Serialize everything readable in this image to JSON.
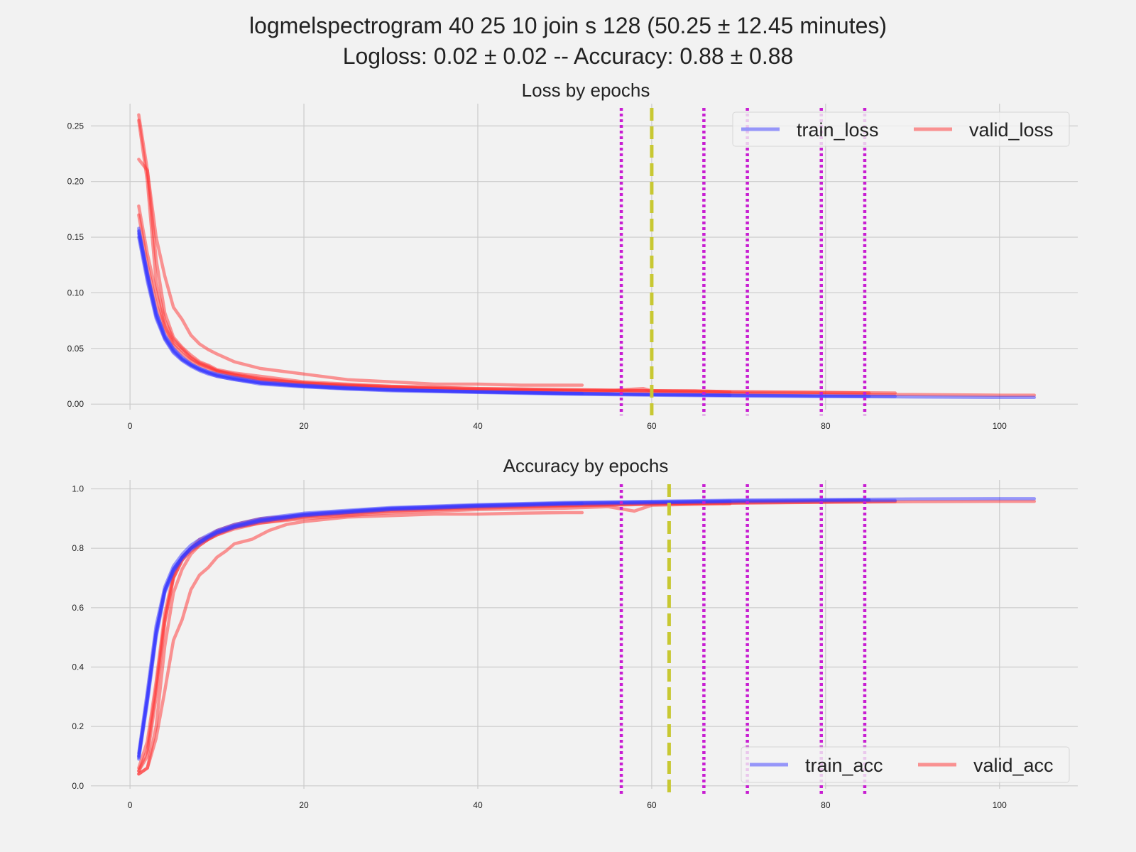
{
  "figure": {
    "title_line1": "logmelspectrogram 40 25 10 join s 128   (50.25 ± 12.45 minutes)",
    "title_line2": "Logloss: 0.02 ± 0.02  -- Accuracy:  0.88 ± 0.88"
  },
  "colors": {
    "background": "#f2f2f2",
    "grid": "#cbcbcb",
    "train": "#3a3aff",
    "valid": "#ff3030",
    "fold_marker": "#c81ed2",
    "best_marker": "#c8c832"
  },
  "chart_data": [
    {
      "type": "line",
      "title": "Loss by epochs",
      "xlabel": "",
      "ylabel": "",
      "xlim": [
        -4.5,
        109
      ],
      "ylim": [
        -0.005,
        0.27
      ],
      "xticks": [
        0,
        20,
        40,
        60,
        80,
        100
      ],
      "yticks": [
        0.0,
        0.05,
        0.1,
        0.15,
        0.2,
        0.25
      ],
      "ytick_labels": [
        "0.00",
        "0.05",
        "0.10",
        "0.15",
        "0.20",
        "0.25"
      ],
      "grid": true,
      "legend": {
        "position": "top-right",
        "entries": [
          "train_loss",
          "valid_loss"
        ]
      },
      "vlines_dotted": [
        56.5,
        66,
        71,
        79.5,
        84.5
      ],
      "vline_dashed": 60,
      "train_series": [
        {
          "x": [
            1,
            2,
            3,
            4,
            5,
            6,
            7,
            8,
            9,
            10,
            12,
            15,
            20,
            25,
            30,
            40,
            50,
            60,
            70,
            80,
            85
          ],
          "y": [
            0.155,
            0.115,
            0.08,
            0.06,
            0.048,
            0.04,
            0.035,
            0.031,
            0.028,
            0.026,
            0.023,
            0.019,
            0.016,
            0.014,
            0.013,
            0.011,
            0.0095,
            0.0085,
            0.0078,
            0.0072,
            0.007
          ]
        },
        {
          "x": [
            1,
            2,
            3,
            4,
            5,
            6,
            7,
            8,
            9,
            10,
            12,
            15,
            20,
            25,
            30,
            40,
            50,
            60,
            70,
            80,
            88
          ],
          "y": [
            0.158,
            0.118,
            0.083,
            0.062,
            0.05,
            0.042,
            0.036,
            0.032,
            0.029,
            0.027,
            0.024,
            0.02,
            0.017,
            0.015,
            0.013,
            0.011,
            0.0098,
            0.0088,
            0.008,
            0.0074,
            0.007
          ]
        },
        {
          "x": [
            1,
            2,
            3,
            4,
            5,
            6,
            7,
            8,
            9,
            10,
            12,
            15,
            20,
            25,
            30,
            40,
            50,
            60,
            70,
            80,
            90,
            100,
            104
          ],
          "y": [
            0.15,
            0.11,
            0.077,
            0.058,
            0.046,
            0.039,
            0.034,
            0.03,
            0.027,
            0.025,
            0.022,
            0.018,
            0.0155,
            0.0135,
            0.012,
            0.0105,
            0.009,
            0.008,
            0.0073,
            0.0068,
            0.0064,
            0.006,
            0.006
          ]
        },
        {
          "x": [
            1,
            2,
            3,
            4,
            5,
            6,
            7,
            8,
            9,
            10,
            12,
            15,
            20,
            25,
            30,
            40,
            50,
            52
          ],
          "y": [
            0.156,
            0.117,
            0.082,
            0.061,
            0.049,
            0.041,
            0.036,
            0.032,
            0.029,
            0.026,
            0.023,
            0.019,
            0.0165,
            0.0145,
            0.013,
            0.0112,
            0.0098,
            0.0096
          ]
        },
        {
          "x": [
            1,
            2,
            3,
            4,
            5,
            6,
            7,
            8,
            9,
            10,
            12,
            15,
            20,
            25,
            30,
            40,
            50,
            60,
            69
          ],
          "y": [
            0.153,
            0.113,
            0.079,
            0.059,
            0.047,
            0.04,
            0.035,
            0.031,
            0.028,
            0.025,
            0.022,
            0.019,
            0.016,
            0.014,
            0.0125,
            0.0108,
            0.0095,
            0.0086,
            0.008
          ]
        }
      ],
      "valid_series": [
        {
          "x": [
            1,
            2,
            3,
            4,
            5,
            6,
            7,
            8,
            9,
            10,
            12,
            15,
            20,
            25,
            30,
            40,
            50,
            60,
            70,
            80,
            85
          ],
          "y": [
            0.255,
            0.2,
            0.11,
            0.075,
            0.058,
            0.05,
            0.042,
            0.037,
            0.034,
            0.03,
            0.027,
            0.023,
            0.019,
            0.017,
            0.016,
            0.014,
            0.013,
            0.012,
            0.011,
            0.0105,
            0.01
          ]
        },
        {
          "x": [
            1,
            2,
            3,
            4,
            5,
            6,
            7,
            8,
            9,
            10,
            12,
            15,
            20,
            25,
            30,
            40,
            50,
            60,
            70,
            80,
            88
          ],
          "y": [
            0.22,
            0.21,
            0.13,
            0.082,
            0.06,
            0.051,
            0.044,
            0.038,
            0.035,
            0.031,
            0.028,
            0.025,
            0.02,
            0.018,
            0.016,
            0.014,
            0.013,
            0.012,
            0.011,
            0.0105,
            0.01
          ]
        },
        {
          "x": [
            1,
            2,
            3,
            4,
            5,
            6,
            7,
            8,
            9,
            10,
            12,
            15,
            20,
            25,
            30,
            40,
            50,
            60,
            70,
            80,
            90,
            100,
            104
          ],
          "y": [
            0.178,
            0.135,
            0.1,
            0.07,
            0.055,
            0.048,
            0.041,
            0.036,
            0.033,
            0.03,
            0.026,
            0.022,
            0.018,
            0.016,
            0.015,
            0.013,
            0.012,
            0.011,
            0.0095,
            0.009,
            0.0085,
            0.008,
            0.008
          ]
        },
        {
          "x": [
            1,
            2,
            3,
            4,
            5,
            6,
            7,
            8,
            9,
            10,
            12,
            15,
            20,
            25,
            30,
            35,
            40,
            45,
            50,
            52
          ],
          "y": [
            0.26,
            0.21,
            0.15,
            0.115,
            0.087,
            0.076,
            0.062,
            0.054,
            0.049,
            0.045,
            0.038,
            0.032,
            0.027,
            0.022,
            0.02,
            0.018,
            0.018,
            0.017,
            0.017,
            0.017
          ]
        },
        {
          "x": [
            1,
            2,
            3,
            4,
            5,
            6,
            7,
            8,
            9,
            10,
            12,
            15,
            20,
            25,
            30,
            40,
            50,
            55,
            59,
            60,
            65,
            69
          ],
          "y": [
            0.17,
            0.125,
            0.09,
            0.068,
            0.053,
            0.045,
            0.039,
            0.035,
            0.032,
            0.029,
            0.026,
            0.022,
            0.019,
            0.017,
            0.015,
            0.013,
            0.012,
            0.012,
            0.014,
            0.012,
            0.012,
            0.011
          ]
        }
      ]
    },
    {
      "type": "line",
      "title": "Accuracy by epochs",
      "xlabel": "",
      "ylabel": "",
      "xlim": [
        -4.5,
        109
      ],
      "ylim": [
        -0.01,
        1.03
      ],
      "xticks": [
        0,
        20,
        40,
        60,
        80,
        100
      ],
      "yticks": [
        0.0,
        0.2,
        0.4,
        0.6,
        0.8,
        1.0
      ],
      "ytick_labels": [
        "0.0",
        "0.2",
        "0.4",
        "0.6",
        "0.8",
        "1.0"
      ],
      "grid": true,
      "legend": {
        "position": "bottom-right",
        "entries": [
          "train_acc",
          "valid_acc"
        ]
      },
      "vlines_dotted": [
        56.5,
        66,
        71,
        79.5,
        84.5
      ],
      "vline_dashed": 62,
      "train_series": [
        {
          "x": [
            1,
            2,
            3,
            4,
            5,
            6,
            7,
            8,
            9,
            10,
            12,
            15,
            20,
            25,
            30,
            40,
            50,
            60,
            70,
            80,
            85
          ],
          "y": [
            0.1,
            0.3,
            0.52,
            0.66,
            0.73,
            0.77,
            0.8,
            0.82,
            0.84,
            0.855,
            0.875,
            0.895,
            0.915,
            0.925,
            0.935,
            0.945,
            0.952,
            0.956,
            0.96,
            0.962,
            0.963
          ]
        },
        {
          "x": [
            1,
            2,
            3,
            4,
            5,
            6,
            7,
            8,
            9,
            10,
            12,
            15,
            20,
            25,
            30,
            40,
            50,
            60,
            70,
            80,
            88
          ],
          "y": [
            0.09,
            0.28,
            0.5,
            0.65,
            0.72,
            0.765,
            0.795,
            0.815,
            0.835,
            0.85,
            0.87,
            0.89,
            0.91,
            0.92,
            0.93,
            0.94,
            0.948,
            0.953,
            0.957,
            0.96,
            0.961
          ]
        },
        {
          "x": [
            1,
            2,
            3,
            4,
            5,
            6,
            7,
            8,
            9,
            10,
            12,
            15,
            20,
            25,
            30,
            40,
            50,
            60,
            70,
            80,
            90,
            100,
            104
          ],
          "y": [
            0.11,
            0.32,
            0.54,
            0.67,
            0.74,
            0.78,
            0.81,
            0.83,
            0.845,
            0.86,
            0.88,
            0.9,
            0.918,
            0.928,
            0.937,
            0.947,
            0.954,
            0.958,
            0.962,
            0.964,
            0.966,
            0.967,
            0.967
          ]
        },
        {
          "x": [
            1,
            2,
            3,
            4,
            5,
            6,
            7,
            8,
            9,
            10,
            12,
            15,
            20,
            25,
            30,
            40,
            50,
            52
          ],
          "y": [
            0.095,
            0.29,
            0.51,
            0.655,
            0.725,
            0.77,
            0.8,
            0.82,
            0.838,
            0.852,
            0.872,
            0.892,
            0.912,
            0.922,
            0.932,
            0.942,
            0.95,
            0.951
          ]
        },
        {
          "x": [
            1,
            2,
            3,
            4,
            5,
            6,
            7,
            8,
            9,
            10,
            12,
            15,
            20,
            25,
            30,
            40,
            50,
            60,
            69
          ],
          "y": [
            0.1,
            0.3,
            0.52,
            0.66,
            0.73,
            0.77,
            0.8,
            0.822,
            0.84,
            0.856,
            0.876,
            0.896,
            0.914,
            0.924,
            0.934,
            0.944,
            0.951,
            0.955,
            0.958
          ]
        }
      ],
      "valid_series": [
        {
          "x": [
            1,
            2,
            3,
            4,
            5,
            6,
            7,
            8,
            9,
            10,
            12,
            15,
            20,
            25,
            30,
            40,
            50,
            60,
            70,
            80,
            85
          ],
          "y": [
            0.04,
            0.06,
            0.2,
            0.47,
            0.65,
            0.73,
            0.78,
            0.81,
            0.83,
            0.85,
            0.87,
            0.89,
            0.91,
            0.92,
            0.93,
            0.94,
            0.945,
            0.95,
            0.955,
            0.958,
            0.96
          ]
        },
        {
          "x": [
            1,
            2,
            3,
            4,
            5,
            6,
            7,
            8,
            9,
            10,
            12,
            15,
            20,
            25,
            30,
            40,
            50,
            60,
            70,
            80,
            88
          ],
          "y": [
            0.05,
            0.1,
            0.3,
            0.55,
            0.7,
            0.76,
            0.8,
            0.83,
            0.84,
            0.86,
            0.88,
            0.9,
            0.91,
            0.92,
            0.93,
            0.94,
            0.945,
            0.95,
            0.953,
            0.955,
            0.957
          ]
        },
        {
          "x": [
            1,
            2,
            3,
            4,
            5,
            6,
            7,
            8,
            9,
            10,
            12,
            15,
            20,
            25,
            30,
            40,
            50,
            60,
            70,
            80,
            90,
            100,
            104
          ],
          "y": [
            0.06,
            0.15,
            0.35,
            0.58,
            0.71,
            0.77,
            0.8,
            0.82,
            0.83,
            0.845,
            0.87,
            0.885,
            0.905,
            0.915,
            0.925,
            0.935,
            0.942,
            0.948,
            0.952,
            0.955,
            0.957,
            0.958,
            0.958
          ]
        },
        {
          "x": [
            1,
            2,
            3,
            4,
            5,
            6,
            7,
            8,
            9,
            10,
            11,
            12,
            14,
            16,
            18,
            20,
            25,
            30,
            35,
            40,
            45,
            50,
            52
          ],
          "y": [
            0.04,
            0.06,
            0.16,
            0.32,
            0.49,
            0.56,
            0.66,
            0.71,
            0.735,
            0.77,
            0.79,
            0.815,
            0.83,
            0.86,
            0.88,
            0.89,
            0.905,
            0.91,
            0.915,
            0.915,
            0.918,
            0.92,
            0.92
          ]
        },
        {
          "x": [
            1,
            2,
            3,
            4,
            5,
            6,
            7,
            8,
            9,
            10,
            12,
            15,
            20,
            25,
            30,
            40,
            50,
            55,
            58,
            60,
            65,
            69
          ],
          "y": [
            0.05,
            0.12,
            0.33,
            0.56,
            0.7,
            0.76,
            0.79,
            0.81,
            0.83,
            0.845,
            0.865,
            0.885,
            0.9,
            0.91,
            0.92,
            0.93,
            0.935,
            0.94,
            0.925,
            0.945,
            0.948,
            0.95
          ]
        }
      ]
    }
  ]
}
